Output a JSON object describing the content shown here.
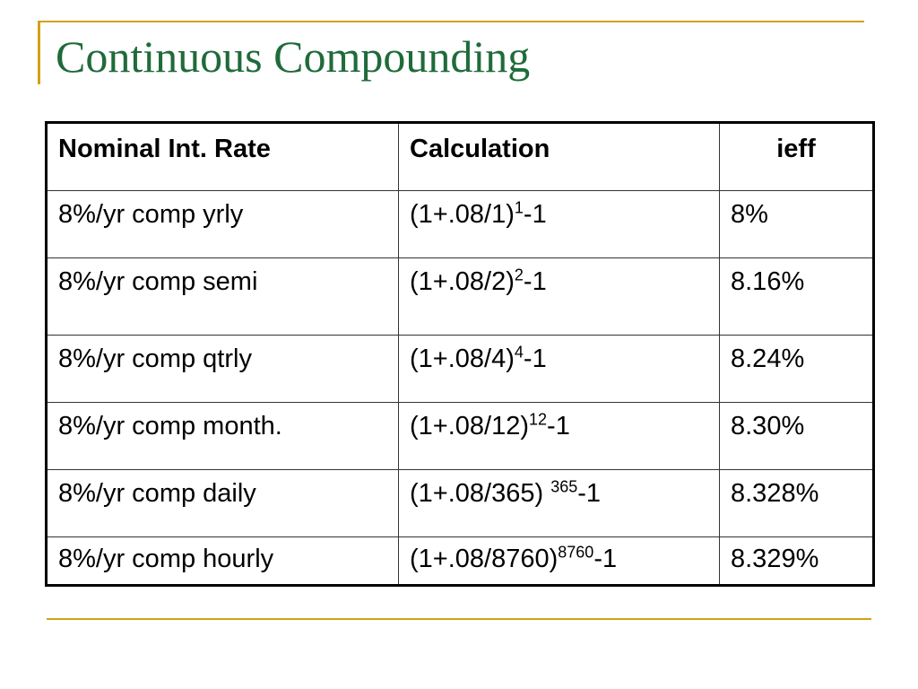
{
  "title": "Continuous Compounding",
  "table": {
    "headers": [
      "Nominal Int. Rate",
      "Calculation",
      "ieff"
    ],
    "rows": [
      {
        "rate": "8%/yr comp yrly",
        "calc_base": "(1+.08/1)",
        "calc_exp": "1",
        "calc_tail": "-1",
        "ieff": "8%"
      },
      {
        "rate": "8%/yr comp semi",
        "calc_base": "(1+.08/2)",
        "calc_exp": "2",
        "calc_tail": "-1",
        "ieff": "8.16%"
      },
      {
        "rate": "8%/yr comp qtrly",
        "calc_base": "(1+.08/4)",
        "calc_exp": "4",
        "calc_tail": "-1",
        "ieff": "8.24%"
      },
      {
        "rate": "8%/yr comp month.",
        "calc_base": "(1+.08/12)",
        "calc_exp": "12",
        "calc_tail": "-1",
        "ieff": "8.30%"
      },
      {
        "rate": "8%/yr comp daily",
        "calc_base": "(1+.08/365) ",
        "calc_exp": "365",
        "calc_tail": "-1",
        "ieff": "8.328%"
      },
      {
        "rate": "8%/yr comp hourly",
        "calc_base": "(1+.08/8760)",
        "calc_exp": "8760",
        "calc_tail": "-1",
        "ieff": "8.329%"
      }
    ]
  },
  "colors": {
    "title": "#1f6b3a",
    "accent_rule": "#d4a017"
  }
}
